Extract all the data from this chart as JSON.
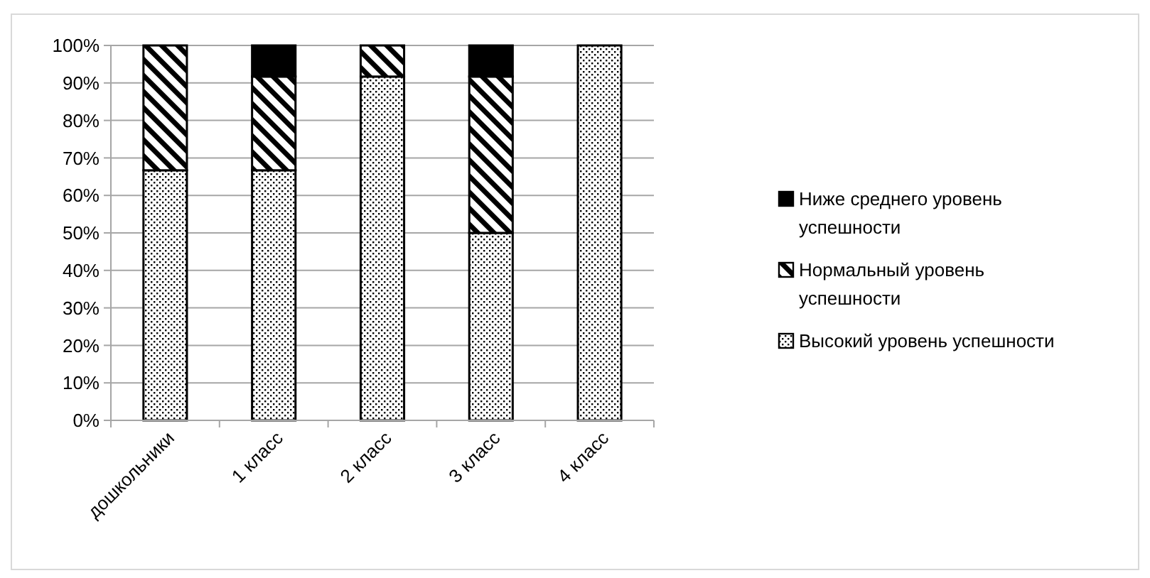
{
  "chart_data": {
    "type": "bar",
    "stacked": true,
    "categories": [
      "дошкольники",
      "1 класс",
      "2 класс",
      "3 класс",
      "4 класс"
    ],
    "series": [
      {
        "name": "Высокий уровень успешности",
        "color": "#000000",
        "values": [
          66.7,
          66.7,
          91.7,
          50,
          100
        ]
      },
      {
        "name": "Нормальный уровень успешности",
        "color": "#000000",
        "values": [
          33.3,
          25,
          8.3,
          41.7,
          0
        ]
      },
      {
        "name": "Ниже среднего уровень успешности",
        "color": "#000000",
        "values": [
          0,
          8.3,
          0,
          8.3,
          0
        ]
      }
    ],
    "ylim": [
      0,
      100
    ],
    "yticks": [
      {
        "value": 0,
        "label": "0%"
      },
      {
        "value": 10,
        "label": "10%"
      },
      {
        "value": 20,
        "label": "20%"
      },
      {
        "value": 30,
        "label": "30%"
      },
      {
        "value": 40,
        "label": "40%"
      },
      {
        "value": 50,
        "label": "50%"
      },
      {
        "value": 60,
        "label": "60%"
      },
      {
        "value": 70,
        "label": "70%"
      },
      {
        "value": 80,
        "label": "80%"
      },
      {
        "value": 90,
        "label": "90%"
      },
      {
        "value": 100,
        "label": "100%"
      }
    ],
    "grid": "y",
    "legend": "right"
  }
}
